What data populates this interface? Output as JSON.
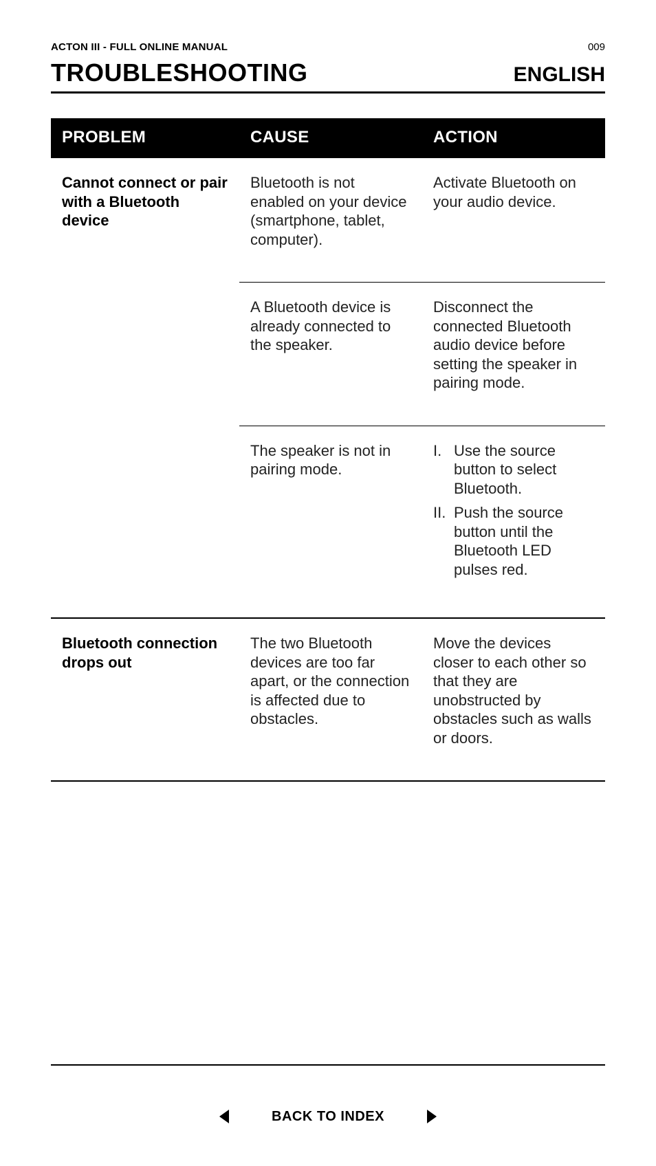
{
  "header": {
    "running_title": "ACTON III - FULL ONLINE MANUAL",
    "page_number": "009",
    "section_title": "TROUBLESHOOTING",
    "language": "ENGLISH"
  },
  "table": {
    "columns": [
      "PROBLEM",
      "CAUSE",
      "ACTION"
    ],
    "col_widths_pct": [
      34,
      33,
      33
    ],
    "header_bg": "#000000",
    "header_fg": "#ffffff",
    "body_fg": "#222222",
    "rule_color": "#000000",
    "font_size_header": 24,
    "font_size_body": 22,
    "groups": [
      {
        "problem": "Cannot connect or pair with a Bluetooth device",
        "rows": [
          {
            "cause": "Bluetooth is not enabled on your device (smartphone, tablet, computer).",
            "action_text": "Activate Bluetooth on your audio device."
          },
          {
            "cause": "A Bluetooth device is already connected to the speaker.",
            "action_text": "Disconnect the connected Bluetooth audio device before setting the speaker in pairing mode."
          },
          {
            "cause": "The speaker is not in pairing mode.",
            "action_list": [
              "Use the source button to select Bluetooth.",
              "Push the source button until the Bluetooth LED pulses red."
            ],
            "action_list_style": "upper-roman"
          }
        ]
      },
      {
        "problem": "Bluetooth connection drops out",
        "rows": [
          {
            "cause": "The two Bluetooth devices are too far apart, or the connection is affected due to obstacles.",
            "action_text": "Move the devices closer to each other so that they are unobstructed by obstacles such as walls or doors."
          }
        ]
      }
    ]
  },
  "footer": {
    "back_label": "BACK TO INDEX",
    "arrow_color": "#000000"
  }
}
